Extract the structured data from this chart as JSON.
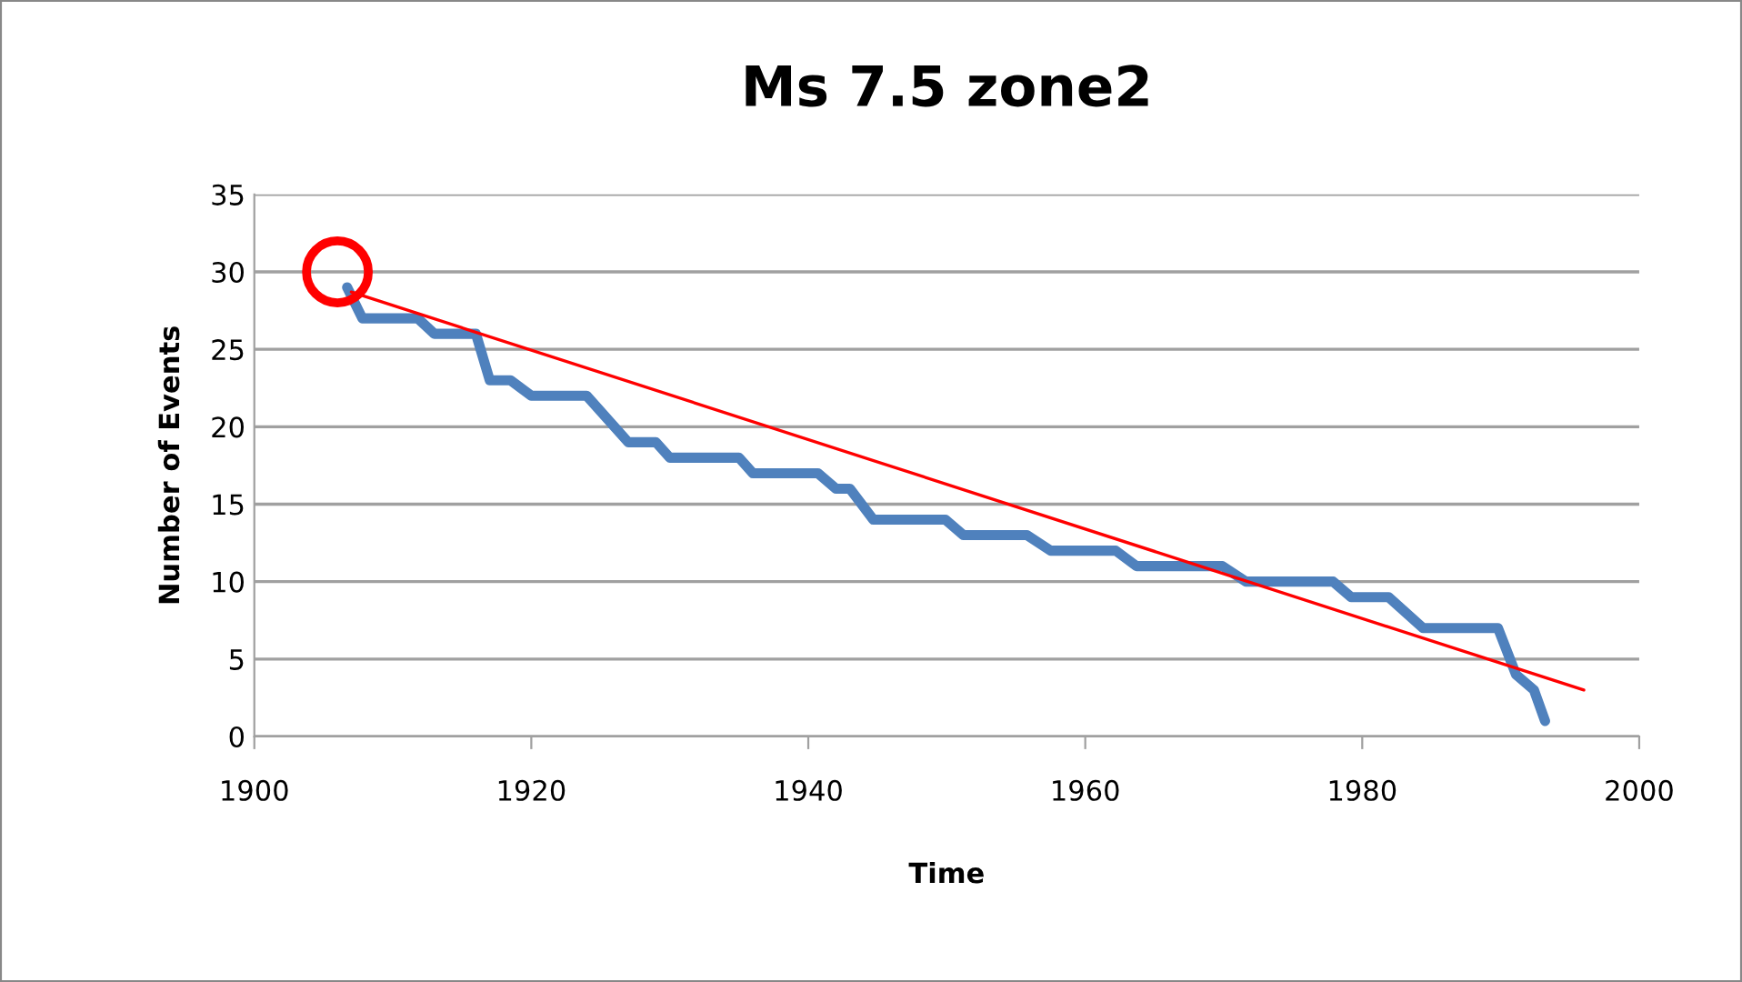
{
  "chart_data": {
    "type": "line",
    "title": "Ms 7.5 zone2",
    "xlabel": "Time",
    "ylabel": "Number of Events",
    "series": [
      {
        "color": "#4f81bd",
        "x": [
          1906.7,
          1907.8,
          1911.8,
          1913,
          1916,
          1917,
          1918.5,
          1920,
          1924,
          1927,
          1929,
          1930,
          1935,
          1936,
          1940.7,
          1942,
          1943,
          1944.7,
          1949.9,
          1951.2,
          1955.8,
          1957.5,
          1962.2,
          1963.7,
          1969.9,
          1971.6,
          1977.9,
          1979.2,
          1981.9,
          1984.4,
          1989.8,
          1991.1,
          1992.4,
          1993.2
        ],
        "values": [
          29,
          27,
          27,
          26,
          26,
          23,
          23,
          22,
          22,
          19,
          19,
          18,
          18,
          17,
          17,
          16,
          16,
          14,
          14,
          13,
          13,
          12,
          12,
          11,
          11,
          10,
          10,
          9,
          9,
          7,
          7,
          4,
          3,
          1
        ]
      },
      {
        "type": "line",
        "color": "#ff0000",
        "x": [
          1907,
          1996
        ],
        "values": [
          28.7,
          3.0
        ]
      },
      {
        "type": "scatter",
        "color": "#ff0000",
        "marker": "circle",
        "x": [
          1906
        ],
        "values": [
          30
        ]
      }
    ],
    "xlim": [
      1900,
      2000
    ],
    "xticks": [
      1900,
      1920,
      1940,
      1960,
      1980,
      2000
    ],
    "ylim": [
      0,
      35
    ],
    "yticks": [
      0,
      5,
      10,
      15,
      20,
      25,
      30,
      35
    ],
    "grid": "y",
    "legend": false
  }
}
